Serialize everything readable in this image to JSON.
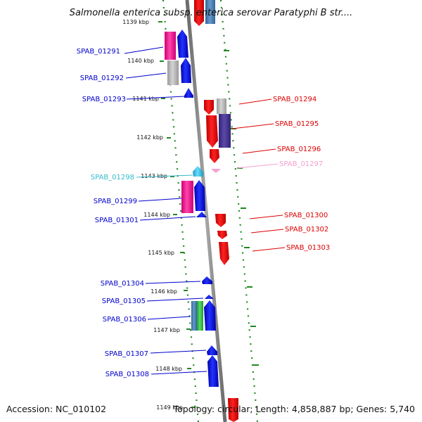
{
  "title": "Salmonella enterica subsp. enterica serovar Paratyphi B str....",
  "accession": "Accession: NC_010102",
  "summary": "Topology: circular; Length: 4,858,887 bp; Genes: 5,740",
  "ticks": [
    {
      "label": "1139 kbp"
    },
    {
      "label": "1140 kbp"
    },
    {
      "label": "1141 kbp"
    },
    {
      "label": "1142 kbp"
    },
    {
      "label": "1143 kbp"
    },
    {
      "label": "1144 kbp"
    },
    {
      "label": "1145 kbp"
    },
    {
      "label": "1146 kbp"
    },
    {
      "label": "1147 kbp"
    },
    {
      "label": "1148 kbp"
    },
    {
      "label": "1149 kbp"
    }
  ],
  "gene_labels": [
    {
      "name": "SPAB_01291",
      "side": "left",
      "color": "#0000cc"
    },
    {
      "name": "SPAB_01292",
      "side": "left",
      "color": "#0000cc"
    },
    {
      "name": "SPAB_01293",
      "side": "left",
      "color": "#0000cc"
    },
    {
      "name": "SPAB_01294",
      "side": "right",
      "color": "#dd0000"
    },
    {
      "name": "SPAB_01295",
      "side": "right",
      "color": "#dd0000"
    },
    {
      "name": "SPAB_01296",
      "side": "right",
      "color": "#dd0000"
    },
    {
      "name": "SPAB_01297",
      "side": "right",
      "color": "#f4a0d0"
    },
    {
      "name": "SPAB_01298",
      "side": "left",
      "color": "#33bbcc"
    },
    {
      "name": "SPAB_01299",
      "side": "left",
      "color": "#0000cc"
    },
    {
      "name": "SPAB_01300",
      "side": "right",
      "color": "#dd0000"
    },
    {
      "name": "SPAB_01301",
      "side": "left",
      "color": "#0000cc"
    },
    {
      "name": "SPAB_01302",
      "side": "right",
      "color": "#dd0000"
    },
    {
      "name": "SPAB_01303",
      "side": "right",
      "color": "#dd0000"
    },
    {
      "name": "SPAB_01304",
      "side": "left",
      "color": "#0000cc"
    },
    {
      "name": "SPAB_01305",
      "side": "left",
      "color": "#0000cc"
    },
    {
      "name": "SPAB_01306",
      "side": "left",
      "color": "#0000cc"
    },
    {
      "name": "SPAB_01307",
      "side": "left",
      "color": "#0000cc"
    },
    {
      "name": "SPAB_01308",
      "side": "left",
      "color": "#0000cc"
    }
  ],
  "colors": {
    "forward_cds": "#0000ee",
    "reverse_cds": "#ee0000",
    "magenta_cds": "#ee1188",
    "grey_cds": "#b0b0b0",
    "purple_cds": "#443388",
    "steel_cds": "#4477aa",
    "green_cds": "#33bb44",
    "cyan_cds": "#33bbdd",
    "pink_cds": "#f4a0d0",
    "backbone": "#808080",
    "dotted_ring": "#228822"
  }
}
